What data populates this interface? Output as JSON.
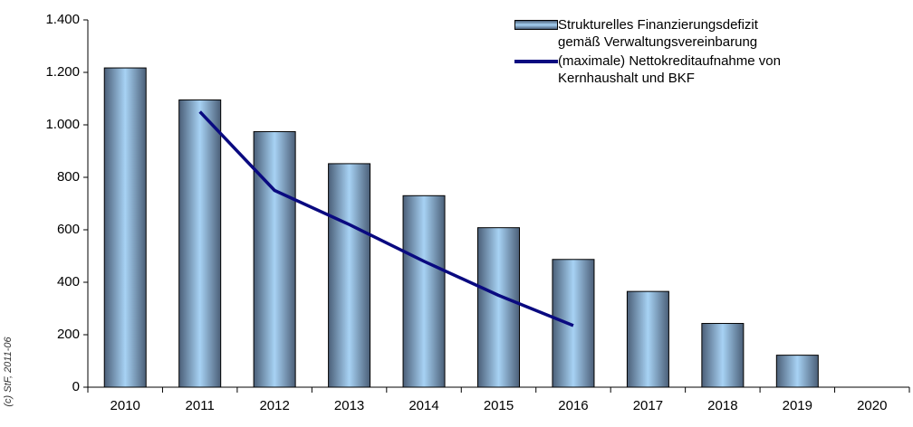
{
  "chart_data": {
    "type": "bar",
    "categories": [
      "2010",
      "2011",
      "2012",
      "2013",
      "2014",
      "2015",
      "2016",
      "2017",
      "2018",
      "2019",
      "2020"
    ],
    "series": [
      {
        "name": "Strukturelles Finanzierungsdefizit gemäß Verwaltungsvereinbarung",
        "type": "bar",
        "color": "#9fc8ec",
        "values": [
          1217,
          1095,
          974,
          852,
          730,
          608,
          487,
          365,
          243,
          122,
          0
        ]
      },
      {
        "name": "(maximale) Nettokreditaufnahme von Kernhaushalt und BKF",
        "type": "line",
        "color": "#0a0a80",
        "values": [
          null,
          1050,
          750,
          620,
          480,
          350,
          235,
          null,
          null,
          null,
          null
        ]
      }
    ],
    "ylim": [
      0,
      1400
    ],
    "yticks": [
      0,
      200,
      400,
      600,
      800,
      {
        "value": 1000,
        "label": "1.000"
      },
      {
        "value": 1200,
        "label": "1.200"
      },
      {
        "value": 1400,
        "label": "1.400"
      }
    ],
    "legend": "top-right",
    "annotation": "(c) StF, 2011-06"
  }
}
